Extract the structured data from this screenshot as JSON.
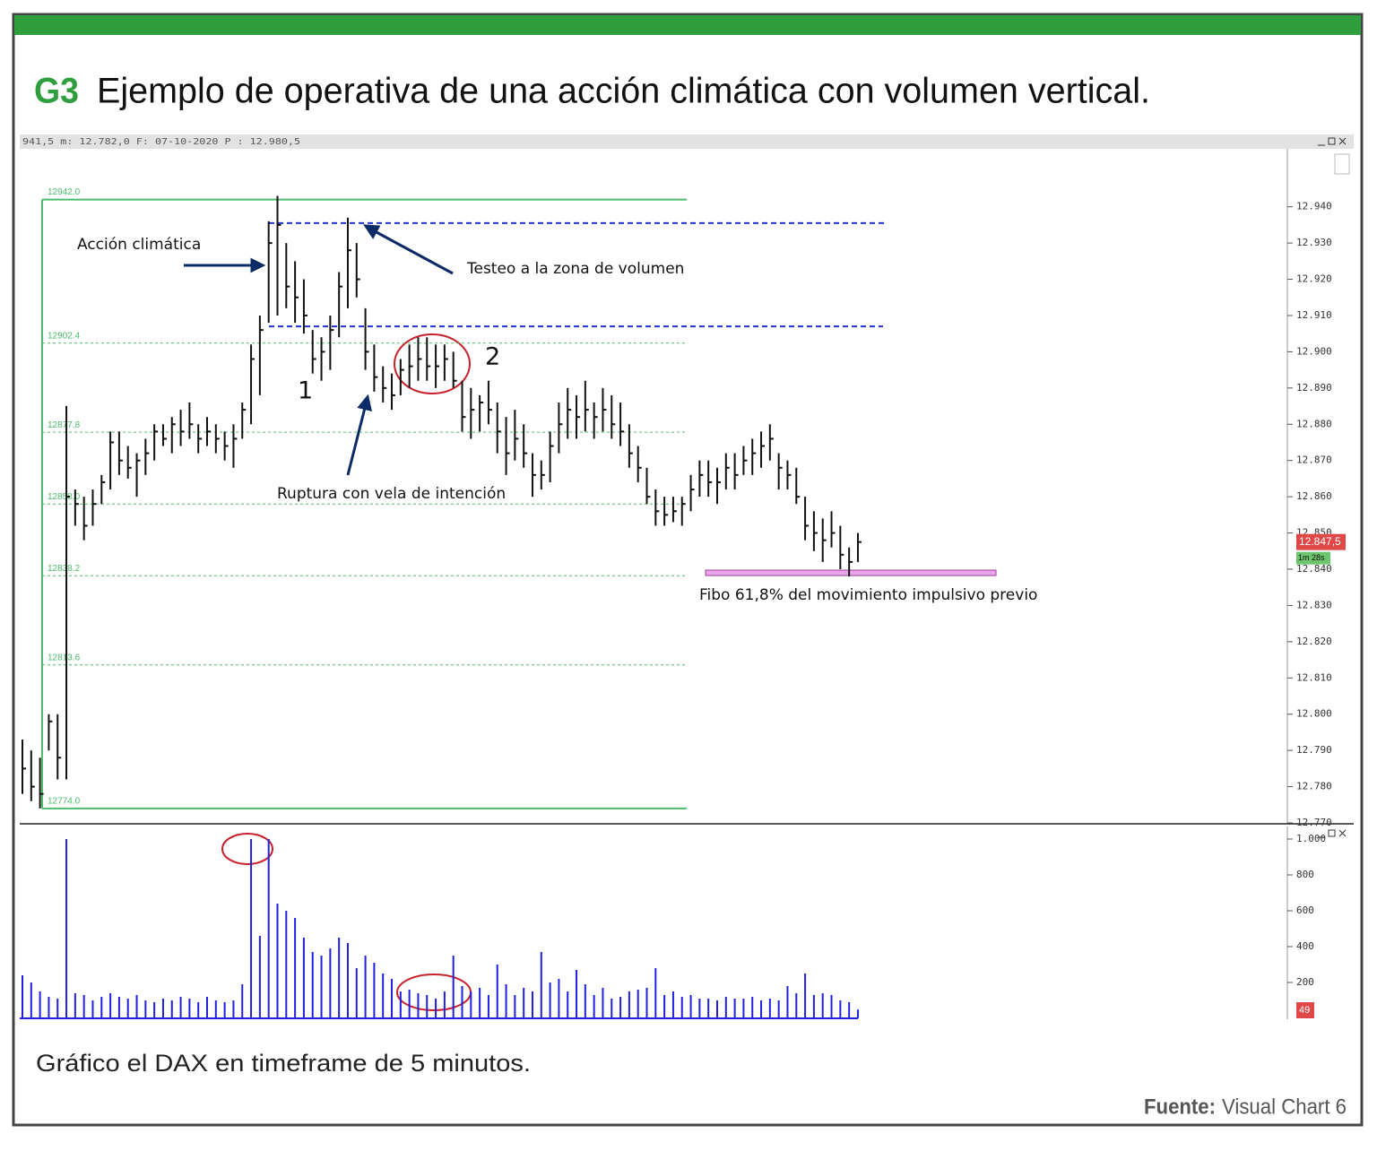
{
  "header": {
    "label": "G3",
    "title": "Ejemplo de operativa de una acción climática con volumen vertical."
  },
  "chart_data": [
    {
      "type": "ohlc",
      "info": "941,5 m: 12.782,0 F: 07-10-2020 P : 12.980,5",
      "high": [
        12793,
        12790,
        12788,
        12800,
        12800,
        12885,
        12862,
        12860,
        12862,
        12866,
        12878,
        12878,
        12874,
        12872,
        12876,
        12880,
        12880,
        12882,
        12884,
        12886,
        12880,
        12882,
        12880,
        12878,
        12880,
        12886,
        12902,
        12910,
        12936,
        12943,
        12930,
        12925,
        12920,
        12906,
        12904,
        12910,
        12922,
        12937,
        12930,
        12912,
        12902,
        12896,
        12894,
        12898,
        12902,
        12904,
        12904,
        12902,
        12902,
        12900,
        12892,
        12890,
        12888,
        12892,
        12886,
        12882,
        12884,
        12880,
        12872,
        12870,
        12878,
        12886,
        12890,
        12888,
        12892,
        12886,
        12890,
        12888,
        12886,
        12880,
        12874,
        12868,
        12862,
        12860,
        12860,
        12860,
        12866,
        12870,
        12870,
        12868,
        12872,
        12872,
        12874,
        12876,
        12878,
        12880,
        12872,
        12870,
        12868,
        12860,
        12856,
        12854,
        12856,
        12852,
        12846,
        12850
      ],
      "low": [
        12778,
        12776,
        12774,
        12790,
        12782,
        12782,
        12852,
        12848,
        12852,
        12858,
        12862,
        12866,
        12865,
        12860,
        12866,
        12870,
        12874,
        12872,
        12874,
        12876,
        12872,
        12874,
        12872,
        12870,
        12868,
        12876,
        12880,
        12888,
        12908,
        12910,
        12912,
        12908,
        12905,
        12894,
        12892,
        12895,
        12904,
        12912,
        12915,
        12895,
        12889,
        12886,
        12884,
        12888,
        12890,
        12892,
        12892,
        12890,
        12892,
        12890,
        12878,
        12876,
        12878,
        12880,
        12872,
        12866,
        12870,
        12868,
        12860,
        12862,
        12864,
        12872,
        12876,
        12876,
        12878,
        12876,
        12878,
        12876,
        12874,
        12868,
        12864,
        12858,
        12852,
        12852,
        12853,
        12852,
        12856,
        12860,
        12860,
        12858,
        12862,
        12862,
        12866,
        12866,
        12868,
        12870,
        12862,
        12862,
        12858,
        12848,
        12845,
        12842,
        12846,
        12840,
        12838,
        12842
      ],
      "close": [
        12785,
        12780,
        12778,
        12798,
        12788,
        12860,
        12858,
        12852,
        12858,
        12864,
        12875,
        12870,
        12868,
        12870,
        12872,
        12878,
        12876,
        12880,
        12878,
        12880,
        12876,
        12878,
        12876,
        12874,
        12876,
        12884,
        12898,
        12906,
        12930,
        12935,
        12918,
        12915,
        12910,
        12898,
        12900,
        12906,
        12918,
        12928,
        12920,
        12900,
        12893,
        12890,
        12888,
        12895,
        12896,
        12898,
        12896,
        12896,
        12898,
        12892,
        12882,
        12884,
        12886,
        12884,
        12878,
        12872,
        12876,
        12872,
        12866,
        12866,
        12874,
        12880,
        12884,
        12882,
        12884,
        12882,
        12884,
        12880,
        12878,
        12872,
        12868,
        12860,
        12856,
        12855,
        12856,
        12858,
        12862,
        12866,
        12864,
        12864,
        12868,
        12866,
        12870,
        12872,
        12874,
        12876,
        12868,
        12866,
        12860,
        12852,
        12850,
        12848,
        12850,
        12844,
        12842,
        12847.5
      ],
      "color": "#111111",
      "ylim": [
        12770,
        12956
      ],
      "yticks": [
        {
          "value": 12770,
          "label": "12.770"
        },
        {
          "value": 12780,
          "label": "12.780"
        },
        {
          "value": 12790,
          "label": "12.790"
        },
        {
          "value": 12800,
          "label": "12.800"
        },
        {
          "value": 12810,
          "label": "12.810"
        },
        {
          "value": 12820,
          "label": "12.820"
        },
        {
          "value": 12830,
          "label": "12.830"
        },
        {
          "value": 12840,
          "label": "12.840"
        },
        {
          "value": 12850,
          "label": "12.850"
        },
        {
          "value": 12860,
          "label": "12.860"
        },
        {
          "value": 12870,
          "label": "12.870"
        },
        {
          "value": 12880,
          "label": "12.880"
        },
        {
          "value": 12890,
          "label": "12.890"
        },
        {
          "value": 12900,
          "label": "12.900"
        },
        {
          "value": 12910,
          "label": "12.910"
        },
        {
          "value": 12920,
          "label": "12.920"
        },
        {
          "value": 12930,
          "label": "12.930"
        },
        {
          "value": 12940,
          "label": "12.940"
        }
      ],
      "last_label": "12.847,5",
      "timer": "1m 28s",
      "fib_levels": [
        {
          "value": 12942,
          "label": "12942.0"
        },
        12902.4,
        12877.8,
        {
          "value": 12858,
          "label": "12858.0"
        },
        12838.2,
        12813.6,
        {
          "value": 12774,
          "label": "12774.0"
        }
      ],
      "zone": [
        12935.5,
        12907
      ],
      "target": 12839,
      "annotations": [
        "Acción climática",
        "Testeo a la zona de volumen",
        "Ruptura con vela de intención",
        "Fibo 61,8% del movimiento impulsivo previo",
        "1",
        "2"
      ]
    },
    {
      "type": "volume",
      "values": [
        240,
        200,
        150,
        120,
        110,
        1000,
        140,
        130,
        100,
        120,
        140,
        120,
        110,
        130,
        100,
        90,
        110,
        100,
        120,
        110,
        90,
        120,
        100,
        90,
        100,
        190,
        1000,
        460,
        1000,
        640,
        600,
        560,
        450,
        370,
        350,
        390,
        450,
        420,
        280,
        350,
        310,
        250,
        220,
        150,
        160,
        140,
        130,
        110,
        150,
        350,
        180,
        150,
        170,
        130,
        300,
        190,
        130,
        170,
        150,
        370,
        200,
        220,
        150,
        270,
        190,
        130,
        170,
        110,
        120,
        150,
        160,
        170,
        280,
        130,
        150,
        120,
        130,
        110,
        110,
        100,
        120,
        110,
        110,
        120,
        100,
        110,
        100,
        180,
        140,
        250,
        130,
        140,
        130,
        100,
        90,
        49
      ],
      "color": "#2020e0",
      "ylim": [
        0,
        1040
      ],
      "yticks": [
        200,
        400,
        600,
        800,
        {
          "value": 1000,
          "label": "1.000"
        }
      ]
    }
  ],
  "caption": "Gráfico el DAX en timeframe de 5 minutos.",
  "source": {
    "label": "Fuente:",
    "text": "Visual Chart 6"
  }
}
